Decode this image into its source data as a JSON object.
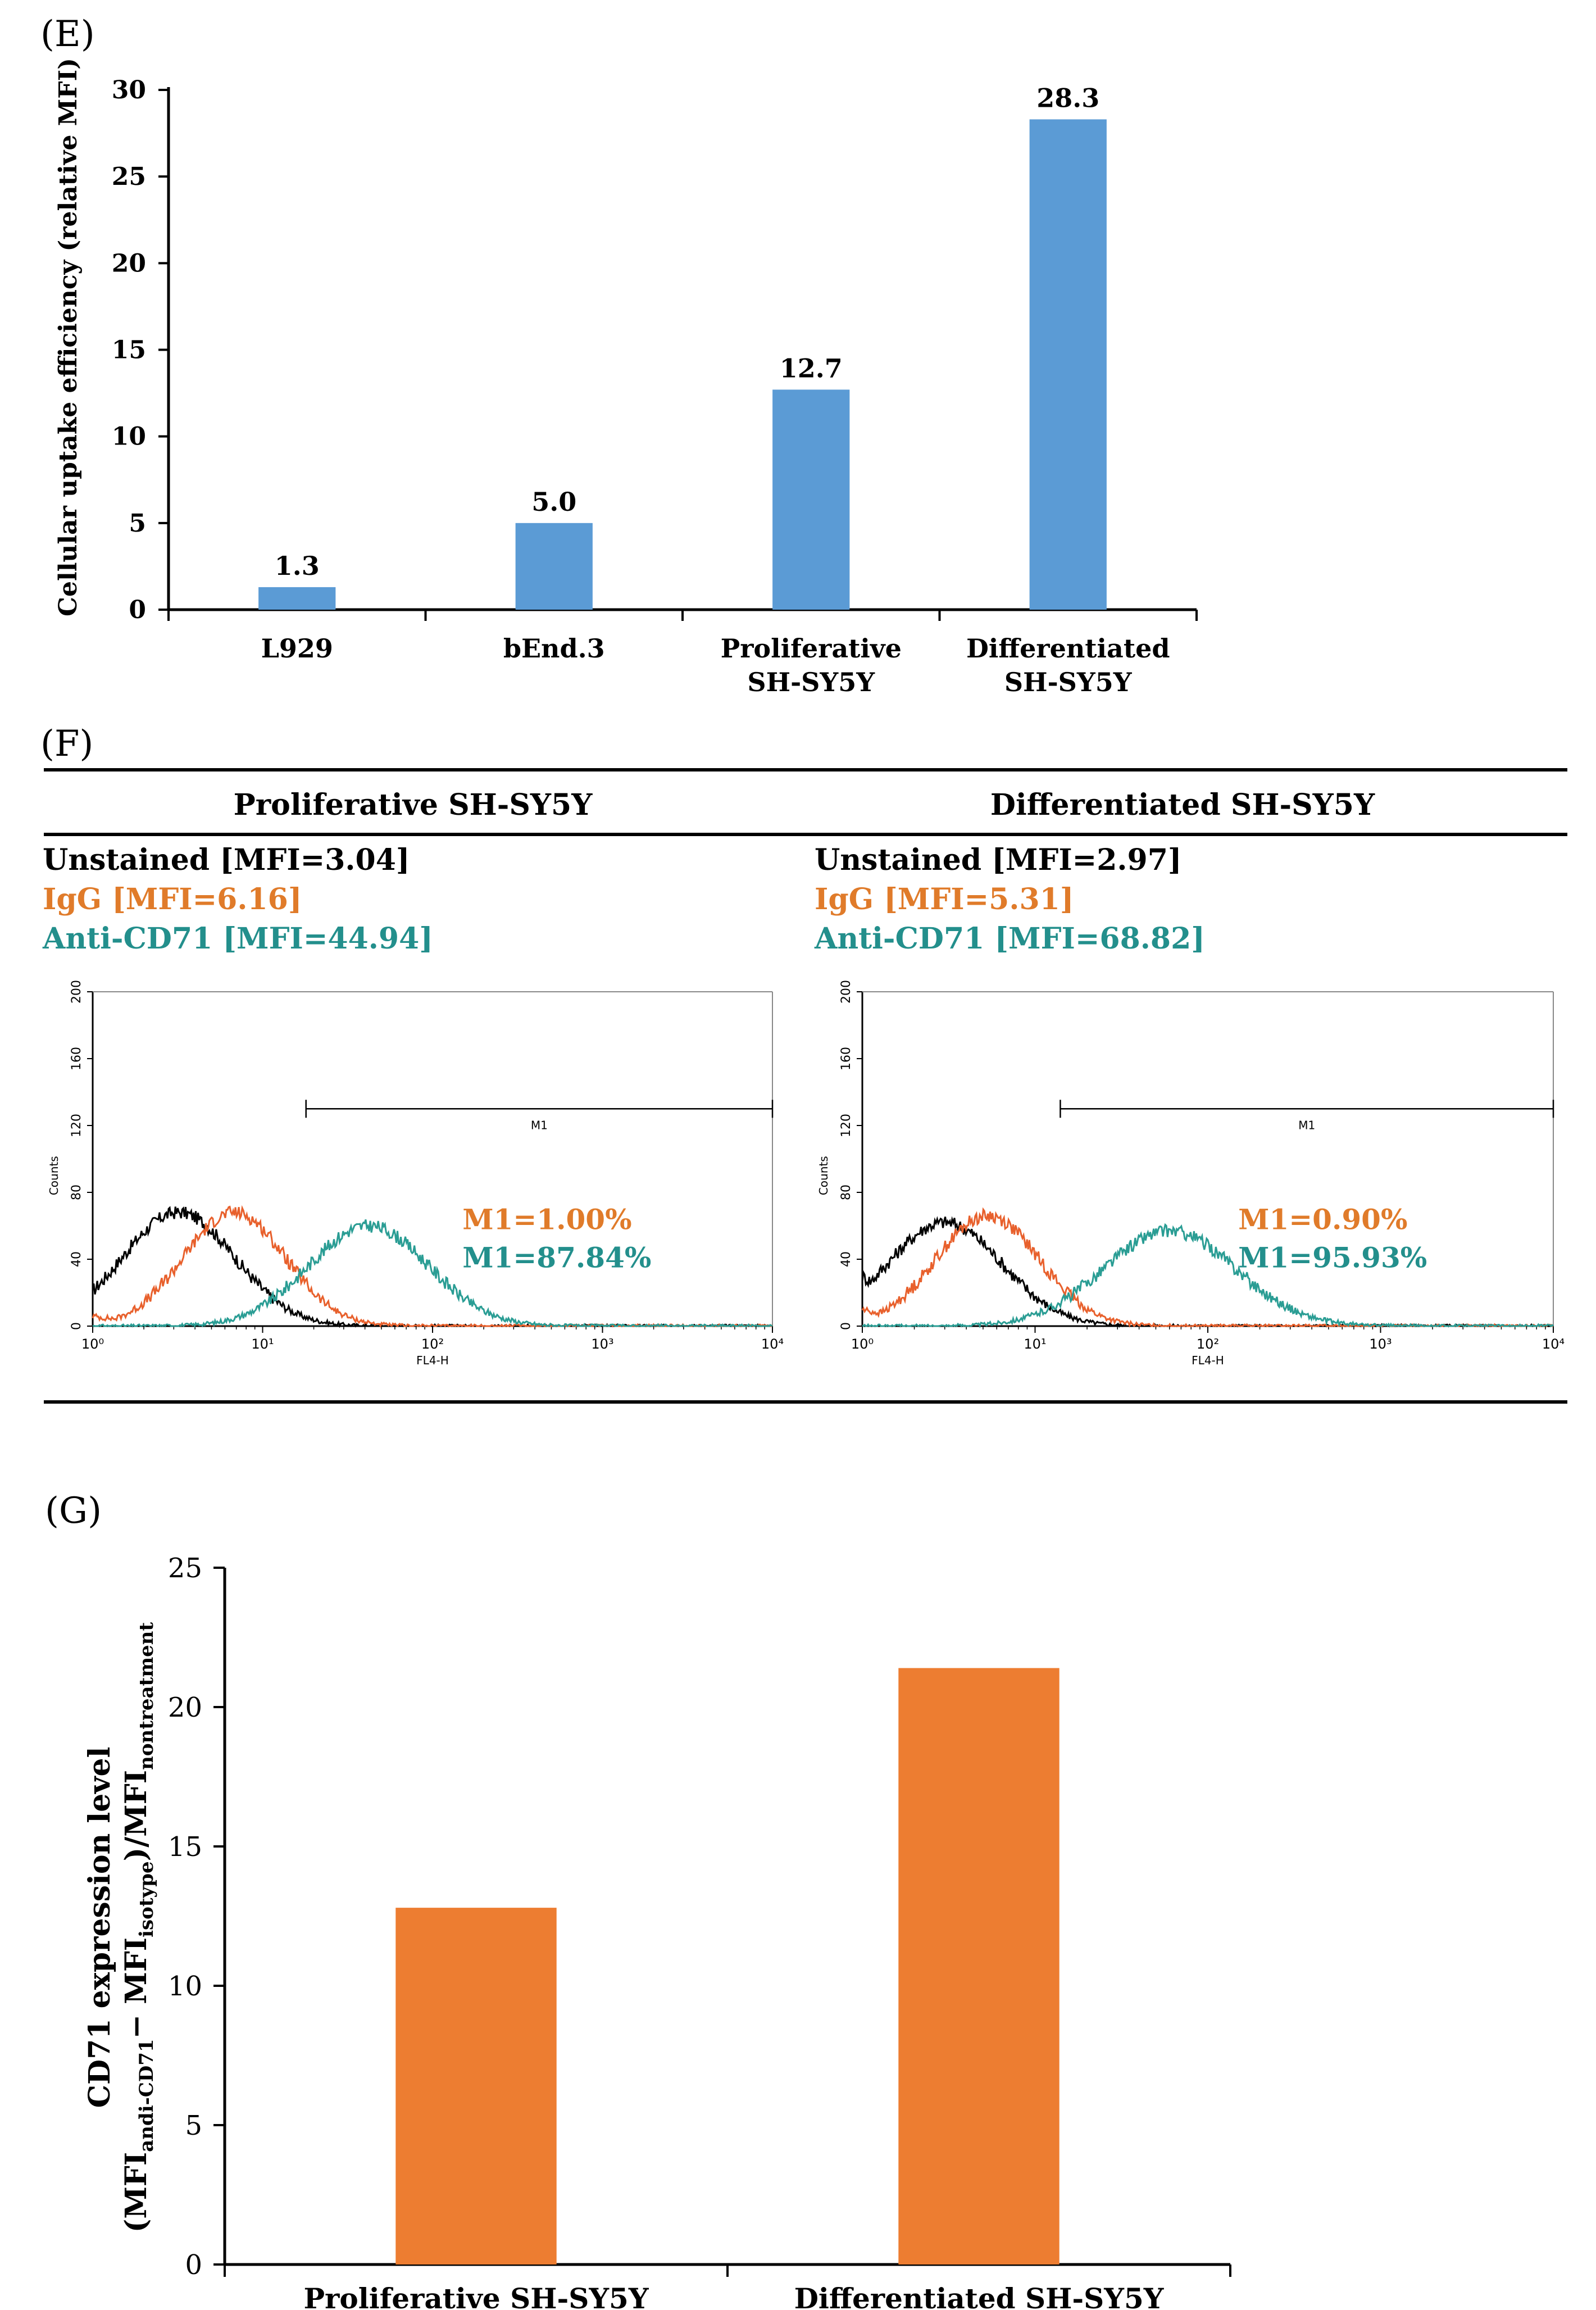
{
  "figure": {
    "panel_e": "(E)",
    "panel_f": "(F)",
    "panel_g": "(G)"
  },
  "colors": {
    "blue_bar": "#5B9BD5",
    "orange_bar": "#ED7D31",
    "unstained": "#000000",
    "igg": "#E8602C",
    "anti_cd71": "#2A9D94",
    "igg_text": "#E07B2A",
    "anti_text": "#238F8C"
  },
  "chart_data": [
    {
      "id": "E",
      "type": "bar",
      "title": "",
      "xlabel": "",
      "ylabel": "Cellular uptake efficiency (relative MFI)",
      "categories": [
        "L929",
        "bEnd.3",
        "Proliferative\nSH-SY5Y",
        "Differentiated\nSH-SY5Y"
      ],
      "values": [
        1.3,
        5.0,
        12.7,
        28.3
      ],
      "data_labels": [
        "1.3",
        "5.0",
        "12.7",
        "28.3"
      ],
      "ylim": [
        0,
        30
      ],
      "yticks": [
        0,
        5,
        10,
        15,
        20,
        25,
        30
      ],
      "color": "#5B9BD5"
    },
    {
      "id": "F",
      "type": "line",
      "xscale": "log",
      "xlim": [
        1,
        10000
      ],
      "ylim": [
        0,
        200
      ],
      "xticks": [
        "10⁰",
        "10¹",
        "10²",
        "10³",
        "10⁴"
      ],
      "yticks": [
        0,
        40,
        80,
        120,
        160,
        200
      ],
      "xlabel": "FL4-H",
      "ylabel": "Counts",
      "gate_label": "M1",
      "panels": [
        {
          "heading": "Proliferative SH-SY5Y",
          "legend": [
            "Unstained [MFI=3.04]",
            "IgG [MFI=6.16]",
            "Anti-CD71 [MFI=44.94]"
          ],
          "m1": [
            "M1=1.00%",
            "M1=87.84%"
          ],
          "gate": [
            18,
            10000
          ],
          "series": [
            {
              "name": "Unstained",
              "peak_x": 3.2,
              "peak_y": 68,
              "log_sigma": 0.33,
              "start_y": 22,
              "color": "#000000"
            },
            {
              "name": "IgG",
              "peak_x": 6.8,
              "peak_y": 68,
              "log_sigma": 0.3,
              "start_y": 6,
              "color": "#E8602C"
            },
            {
              "name": "Anti-CD71",
              "peak_x": 42,
              "peak_y": 60,
              "log_sigma": 0.35,
              "start_y": 0,
              "color": "#2A9D94"
            }
          ]
        },
        {
          "heading": "Differentiated SH-SY5Y",
          "legend": [
            "Unstained [MFI=2.97]",
            "IgG [MFI=5.31]",
            "Anti-CD71 [MFI=68.82]"
          ],
          "m1": [
            "M1=0.90%",
            "M1=95.93%"
          ],
          "gate": [
            14,
            10000
          ],
          "series": [
            {
              "name": "Unstained",
              "peak_x": 3.0,
              "peak_y": 62,
              "log_sigma": 0.33,
              "start_y": 30,
              "color": "#000000"
            },
            {
              "name": "IgG",
              "peak_x": 5.3,
              "peak_y": 66,
              "log_sigma": 0.3,
              "start_y": 10,
              "color": "#E8602C"
            },
            {
              "name": "Anti-CD71",
              "peak_x": 60,
              "peak_y": 57,
              "log_sigma": 0.38,
              "start_y": 0,
              "color": "#2A9D94"
            }
          ]
        }
      ]
    },
    {
      "id": "G",
      "type": "bar",
      "title": "",
      "xlabel": "",
      "ylabel_line1": "CD71 expression level",
      "ylabel_line2": {
        "a": "(MFI",
        "b": "andi-CD71",
        "c": "− MFI",
        "d": "isotype",
        "e": ")/MFI",
        "f": "nontreatment"
      },
      "categories": [
        "Proliferative SH-SY5Y",
        "Differentiated SH-SY5Y"
      ],
      "values": [
        12.8,
        21.4
      ],
      "ylim": [
        0,
        25
      ],
      "yticks": [
        0,
        5,
        10,
        15,
        20,
        25
      ],
      "color": "#ED7D31"
    }
  ]
}
